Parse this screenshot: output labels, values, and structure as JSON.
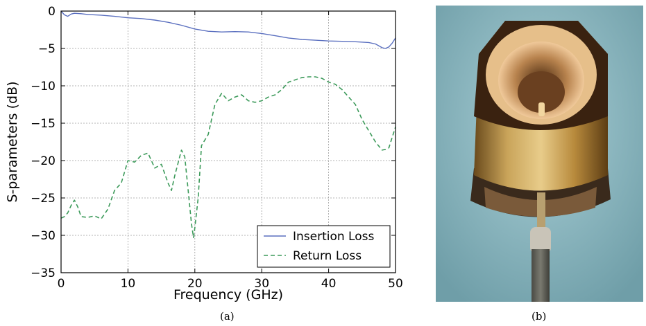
{
  "captions": {
    "left": "(a)",
    "right": "(b)"
  },
  "chart_data": {
    "type": "line",
    "xlabel": "Frequency (GHz)",
    "ylabel": "S-parameters (dB)",
    "xlim": [
      0,
      50
    ],
    "ylim": [
      -35,
      0
    ],
    "xticks": [
      0,
      10,
      20,
      30,
      40,
      50
    ],
    "yticks": [
      0,
      -5,
      -10,
      -15,
      -20,
      -25,
      -30,
      -35
    ],
    "xtick_labels": [
      "0",
      "10",
      "20",
      "30",
      "40",
      "50"
    ],
    "ytick_labels": [
      "0",
      "−5",
      "−10",
      "−15",
      "−20",
      "−25",
      "−30",
      "−35"
    ],
    "grid": true,
    "legend_position": "bottom-right",
    "series": [
      {
        "name": "Insertion Loss",
        "color": "#5a6fbf",
        "style": "solid",
        "x": [
          0,
          0.5,
          1,
          1.5,
          2,
          3,
          4,
          5,
          6,
          8,
          10,
          12,
          14,
          16,
          18,
          20,
          22,
          24,
          26,
          28,
          30,
          32,
          34,
          36,
          38,
          40,
          42,
          44,
          46,
          47,
          48,
          48.5,
          49,
          49.5,
          50
        ],
        "y": [
          0,
          -0.5,
          -0.7,
          -0.4,
          -0.3,
          -0.35,
          -0.45,
          -0.5,
          -0.55,
          -0.7,
          -0.9,
          -1.0,
          -1.2,
          -1.5,
          -1.9,
          -2.4,
          -2.7,
          -2.8,
          -2.75,
          -2.8,
          -3.0,
          -3.3,
          -3.6,
          -3.8,
          -3.9,
          -4.0,
          -4.05,
          -4.1,
          -4.2,
          -4.4,
          -4.9,
          -5.0,
          -4.8,
          -4.3,
          -3.6
        ]
      },
      {
        "name": "Return Loss",
        "color": "#3c9a5a",
        "style": "dashed",
        "x": [
          0,
          0.5,
          1,
          1.5,
          2,
          2.5,
          3,
          4,
          5,
          6,
          7,
          8,
          9,
          10,
          11,
          12,
          13,
          14,
          15,
          16,
          16.5,
          17,
          18,
          18.5,
          19,
          19.5,
          19.8,
          20,
          20.5,
          21,
          22,
          23,
          24,
          25,
          26,
          27,
          28,
          29,
          30,
          31,
          32,
          33,
          34,
          35,
          36,
          37,
          38,
          39,
          40,
          41,
          42,
          43,
          44,
          45,
          46,
          47,
          48,
          48.5,
          49,
          50
        ],
        "y": [
          -27.7,
          -27.5,
          -27.0,
          -26.0,
          -25.3,
          -26.2,
          -27.5,
          -27.6,
          -27.4,
          -27.8,
          -26.5,
          -24.0,
          -23.0,
          -20.0,
          -20.2,
          -19.3,
          -19.0,
          -21.0,
          -20.5,
          -23.0,
          -24.0,
          -22.0,
          -18.6,
          -19.5,
          -24.0,
          -28.5,
          -30.3,
          -29.0,
          -25.0,
          -18.0,
          -16.5,
          -12.5,
          -11.0,
          -12.0,
          -11.5,
          -11.2,
          -12.0,
          -12.2,
          -12.0,
          -11.5,
          -11.2,
          -10.5,
          -9.5,
          -9.2,
          -8.9,
          -8.8,
          -8.8,
          -9.0,
          -9.5,
          -9.8,
          -10.5,
          -11.5,
          -12.5,
          -14.5,
          -16.0,
          -17.5,
          -18.6,
          -18.5,
          -18.3,
          -15.5
        ]
      }
    ]
  }
}
